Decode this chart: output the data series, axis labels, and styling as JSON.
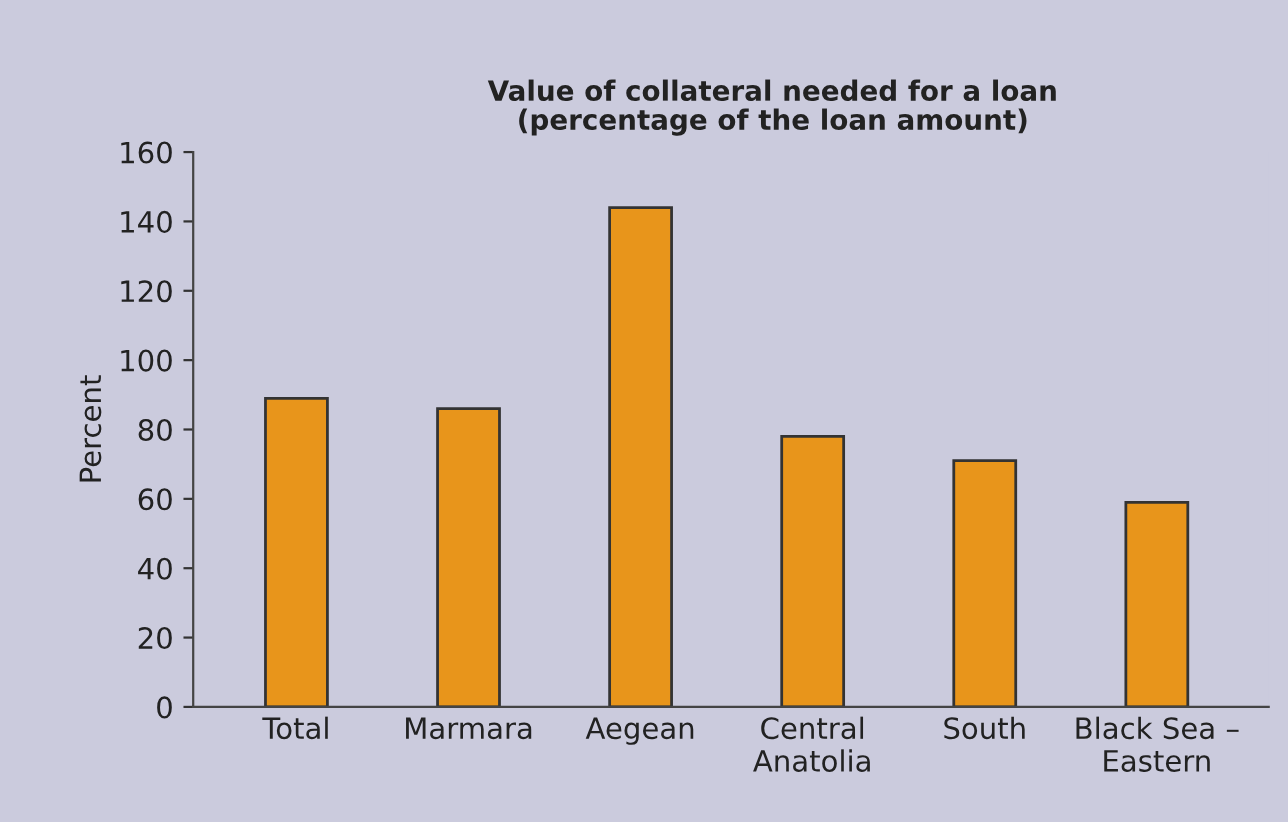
{
  "chart_data": {
    "type": "bar",
    "title": "Value of collateral needed for a loan\n(percentage of the loan amount)",
    "ylabel": "Percent",
    "categories": [
      "Total",
      "Marmara",
      "Aegean",
      "Central\nAnatolia",
      "South",
      "Black Sea –\nEastern"
    ],
    "values": [
      89,
      86,
      144,
      78,
      71,
      59
    ],
    "color": "#e8951b",
    "ylim": [
      0,
      160
    ],
    "yticks": [
      0,
      20,
      40,
      60,
      80,
      100,
      120,
      140,
      160
    ],
    "grid": false
  }
}
